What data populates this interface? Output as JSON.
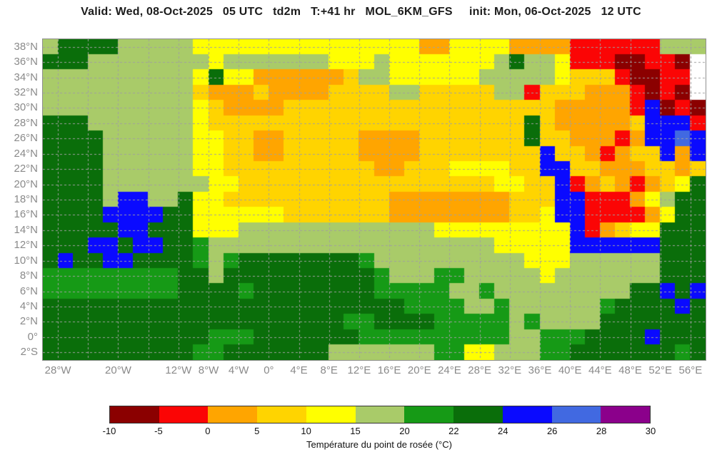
{
  "title": "Valid: Wed, 08-Oct-2025   05 UTC   td2m   T:+41 hr   MOL_6KM_GFS     init: Mon, 06-Oct-2025   12 UTC",
  "map": {
    "bounds": {
      "lon_min": -30,
      "lon_max": 58,
      "lat_min": -3,
      "lat_max": 39
    },
    "lat_ticks": [
      {
        "label": "38°N",
        "lat": 38
      },
      {
        "label": "36°N",
        "lat": 36
      },
      {
        "label": "34°N",
        "lat": 34
      },
      {
        "label": "32°N",
        "lat": 32
      },
      {
        "label": "30°N",
        "lat": 30
      },
      {
        "label": "28°N",
        "lat": 28
      },
      {
        "label": "26°N",
        "lat": 26
      },
      {
        "label": "24°N",
        "lat": 24
      },
      {
        "label": "22°N",
        "lat": 22
      },
      {
        "label": "20°N",
        "lat": 20
      },
      {
        "label": "18°N",
        "lat": 18
      },
      {
        "label": "16°N",
        "lat": 16
      },
      {
        "label": "14°N",
        "lat": 14
      },
      {
        "label": "12°N",
        "lat": 12
      },
      {
        "label": "10°N",
        "lat": 10
      },
      {
        "label": "8°N",
        "lat": 8
      },
      {
        "label": "6°N",
        "lat": 6
      },
      {
        "label": "4°N",
        "lat": 4
      },
      {
        "label": "2°N",
        "lat": 2
      },
      {
        "label": "0°",
        "lat": 0
      },
      {
        "label": "2°S",
        "lat": -2
      }
    ],
    "lon_ticks": [
      {
        "label": "28°W",
        "lon": -28
      },
      {
        "label": "20°W",
        "lon": -20
      },
      {
        "label": "12°W",
        "lon": -12
      },
      {
        "label": "8°W",
        "lon": -8
      },
      {
        "label": "4°W",
        "lon": -4
      },
      {
        "label": "0°",
        "lon": 0
      },
      {
        "label": "4°E",
        "lon": 4
      },
      {
        "label": "8°E",
        "lon": 8
      },
      {
        "label": "12°E",
        "lon": 12
      },
      {
        "label": "16°E",
        "lon": 16
      },
      {
        "label": "20°E",
        "lon": 20
      },
      {
        "label": "24°E",
        "lon": 24
      },
      {
        "label": "28°E",
        "lon": 28
      },
      {
        "label": "32°E",
        "lon": 32
      },
      {
        "label": "36°E",
        "lon": 36
      },
      {
        "label": "40°E",
        "lon": 40
      },
      {
        "label": "44°E",
        "lon": 44
      },
      {
        "label": "48°E",
        "lon": 48
      },
      {
        "label": "52°E",
        "lon": 52
      },
      {
        "label": "56°E",
        "lon": 56
      }
    ],
    "gridline_lats": [
      38,
      36,
      34,
      32,
      30,
      28,
      26,
      24,
      22,
      20,
      18,
      16,
      14,
      12,
      10,
      8,
      6,
      4,
      2,
      0,
      -2
    ],
    "gridline_lons": [
      -28,
      -24,
      -20,
      -16,
      -12,
      -8,
      -4,
      0,
      4,
      8,
      12,
      16,
      20,
      24,
      28,
      32,
      36,
      40,
      44,
      48,
      52,
      56
    ],
    "palette": {
      "M": "#8B0000",
      "R": "#FB0505",
      "O": "#FFA500",
      "F": "#FFD400",
      "Y": "#FFFF00",
      "L": "#A9CB69",
      "G": "#169A16",
      "D": "#0A6E0A",
      "B": "#0A0AFF",
      "S": "#4169E1",
      "P": "#8B008B",
      "W": "#FFFFFF"
    },
    "grid_cols": 44,
    "grid_rows": [
      "LDDDDLLLLLYYYYYYYYYYYYYYYOOYYYYOOOORRRRRRLLL",
      "DDDLLLLLLLLYLLLLLLLYYYLYYYYYYYLDLLYRRRMMRRMW",
      "LLLLLLLLLLYDYYOOOOOOFLLYYYYYYLLLLLYFFFRMMRRW",
      "LLLLLLLLLLFOOOFOOOOFFFFLLFFFFFLLRFFFOOORMRMW",
      "LLLLLLLLLLYFOOOOFFFFFFFFFFFFFFFFFFOOOOORBMRM",
      "DDDLLLLLLLYFFFFFFFFFFFFFFFFFFFFFDFOOOOOFBBBR",
      "DDDDLLLLLLYYFFOOFFFFFOOOOFFFFFFFDFFOOOROBBSB",
      "DDDDLLLLLLYYFFOOFFFFFOOOOFFFFFFFFBFFOROFFBOB",
      "DDDDLLLLLLYYFFFFFFFFFFOOFFFYYYYFFBBFFOOOFFOF",
      "DDDDLLLLLLLYYFFFFFFFFFFFFFFFFFYYFFBROFOROFYD",
      "DDDDLBBLLDYYFFFFFFFFFFFOOOOOOOOFFFBBRRROYLDD",
      "DDDDBBBBDDYYYYYYFFFFFFFOOOOOOOOFFYBBRRRROYDD",
      "DDDDDBBDDDYYYLLLLLLLLLLLLLYYYYYYYYYBROFYYDDD",
      "DDDBBDBBDDGLLLLLLLLLLLLLLLLLLLYYYYYBBBBBBDDD",
      "DBDDBBDDDDGLGDDDDDDDDGLLLLLLLLLLYYYLLLLLLDDD",
      "GGGGGGGGGDDLDDDDDDDDDDGLLLGGLLLLLYLLLLLLLDDD",
      "GGGGGGGGGDDDDGDDDDDDDDGGGGGLLGLLLLLLLLLDDBDB",
      "DDDDDDDDDDDDDDDDDDDDDDDDGGGGLLGLLLLLLGDDDDBD",
      "DDDDDDDDDDDDDDDDDDDDGGDDDDGGGGGLGLLLLDDDDDDD",
      "DDDDDDDDDDDGGGDDDDDDDGGGGGGGGGGLLGGGDDDDBDDD",
      "DDDDDDDDDDGGDDDDDDDLLLLLLLGGYYLLLGGDDDDDDDGD"
    ],
    "gridline_color": "#a0a0a0"
  },
  "colorbar": {
    "boundary_labels": [
      "-10",
      "-5",
      "0",
      "5",
      "10",
      "15",
      "20",
      "22",
      "24",
      "26",
      "28",
      "30"
    ],
    "segment_colors": [
      "#8B0000",
      "#FB0505",
      "#FFA500",
      "#FFD400",
      "#FFFF00",
      "#A9CB69",
      "#169A16",
      "#0A6E0A",
      "#0A0AFF",
      "#4169E1",
      "#8B008B"
    ],
    "caption": "Température du point de rosée (°C)"
  }
}
